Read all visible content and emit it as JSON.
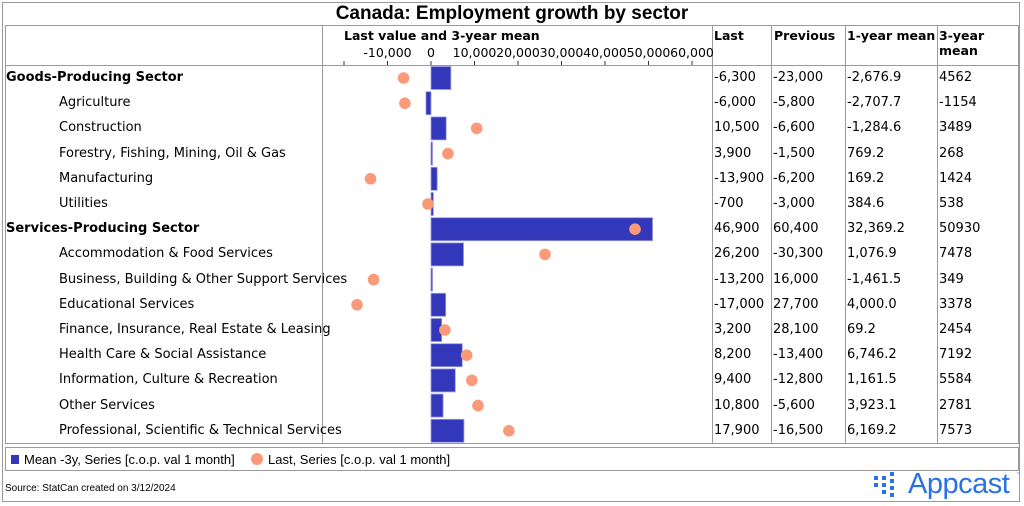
{
  "chart_data": {
    "type": "bar",
    "title": "Canada: Employment growth by sector",
    "plot_header": "Last value and 3-year mean",
    "xlim": [
      -20000,
      62000
    ],
    "ticks": [
      -20000,
      -10000,
      0,
      10000,
      20000,
      30000,
      40000,
      50000,
      60000
    ],
    "tick_labels": [
      "",
      "-10,000",
      "0",
      "10,000",
      "20,000",
      "30,000",
      "40,000",
      "50,000",
      "60,000"
    ],
    "columns": [
      "Last",
      "Previous",
      "1-year mean",
      "3-year mean"
    ],
    "series": [
      {
        "name": "Mean -3y, Series [c.o.p. val 1 month]",
        "mark": "bar",
        "color": "#3338bb"
      },
      {
        "name": "Last, Series [c.o.p. val 1 month]",
        "mark": "dot",
        "color": "#fb9a78"
      }
    ],
    "rows": [
      {
        "label": "Goods-Producing Sector",
        "level": 0,
        "last": -6300,
        "mean3y": 4562,
        "cells": [
          "-6,300",
          "-23,000",
          "-2,676.9",
          "4562"
        ]
      },
      {
        "label": "Agriculture",
        "level": 1,
        "last": -6000,
        "mean3y": -1154,
        "cells": [
          "-6,000",
          "-5,800",
          "-2,707.7",
          "-1154"
        ]
      },
      {
        "label": "Construction",
        "level": 1,
        "last": 10500,
        "mean3y": 3489,
        "cells": [
          "10,500",
          "-6,600",
          "-1,284.6",
          "3489"
        ]
      },
      {
        "label": "Forestry, Fishing, Mining, Oil & Gas",
        "level": 1,
        "last": 3900,
        "mean3y": 268,
        "cells": [
          "3,900",
          "-1,500",
          "769.2",
          "268"
        ]
      },
      {
        "label": "Manufacturing",
        "level": 1,
        "last": -13900,
        "mean3y": 1424,
        "cells": [
          "-13,900",
          "-6,200",
          "169.2",
          "1424"
        ]
      },
      {
        "label": "Utilities",
        "level": 1,
        "last": -700,
        "mean3y": 538,
        "cells": [
          "-700",
          "-3,000",
          "384.6",
          "538"
        ]
      },
      {
        "label": "Services-Producing Sector",
        "level": 0,
        "last": 46900,
        "mean3y": 50930,
        "cells": [
          "46,900",
          "60,400",
          "32,369.2",
          "50930"
        ]
      },
      {
        "label": "Accommodation & Food Services",
        "level": 1,
        "last": 26200,
        "mean3y": 7478,
        "cells": [
          "26,200",
          "-30,300",
          "1,076.9",
          "7478"
        ]
      },
      {
        "label": "Business, Building & Other Support Services",
        "level": 1,
        "last": -13200,
        "mean3y": 349,
        "cells": [
          "-13,200",
          "16,000",
          "-1,461.5",
          "349"
        ]
      },
      {
        "label": "Educational Services",
        "level": 1,
        "last": -17000,
        "mean3y": 3378,
        "cells": [
          "-17,000",
          "27,700",
          "4,000.0",
          "3378"
        ]
      },
      {
        "label": "Finance, Insurance, Real Estate & Leasing",
        "level": 1,
        "last": 3200,
        "mean3y": 2454,
        "cells": [
          "3,200",
          "28,100",
          "69.2",
          "2454"
        ]
      },
      {
        "label": "Health Care & Social Assistance",
        "level": 1,
        "last": 8200,
        "mean3y": 7192,
        "cells": [
          "8,200",
          "-13,400",
          "6,746.2",
          "7192"
        ]
      },
      {
        "label": "Information, Culture & Recreation",
        "level": 1,
        "last": 9400,
        "mean3y": 5584,
        "cells": [
          "9,400",
          "-12,800",
          "1,161.5",
          "5584"
        ]
      },
      {
        "label": "Other Services",
        "level": 1,
        "last": 10800,
        "mean3y": 2781,
        "cells": [
          "10,800",
          "-5,600",
          "3,923.1",
          "2781"
        ]
      },
      {
        "label": "Professional, Scientific & Technical Services",
        "level": 1,
        "last": 17900,
        "mean3y": 7573,
        "cells": [
          "17,900",
          "-16,500",
          "6,169.2",
          "7573"
        ]
      }
    ]
  },
  "legend": {
    "mean_label": "Mean -3y, Series [c.o.p. val 1 month]",
    "last_label": "Last, Series [c.o.p. val 1 month]"
  },
  "footer": {
    "source": "Source: StatCan created on 3/12/2024",
    "logo_text": "Appcast",
    "logo_tm": "™"
  }
}
